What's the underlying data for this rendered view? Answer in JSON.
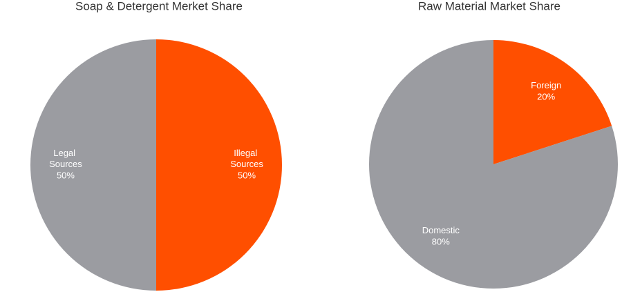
{
  "chart_data": [
    {
      "type": "pie",
      "title": "Soap & Detergent Merket Share",
      "categories": [
        "Illegal Sources",
        "Legal Sources"
      ],
      "values": [
        50,
        50
      ],
      "value_labels": [
        "50%",
        "50%"
      ],
      "colors": [
        "#ff4f00",
        "#9b9ca1"
      ]
    },
    {
      "type": "pie",
      "title": "Raw Material Market Share",
      "categories": [
        "Foreign",
        "Domestic"
      ],
      "values": [
        20,
        80
      ],
      "value_labels": [
        "20%",
        "80%"
      ],
      "colors": [
        "#ff4f00",
        "#9b9ca1"
      ]
    }
  ]
}
